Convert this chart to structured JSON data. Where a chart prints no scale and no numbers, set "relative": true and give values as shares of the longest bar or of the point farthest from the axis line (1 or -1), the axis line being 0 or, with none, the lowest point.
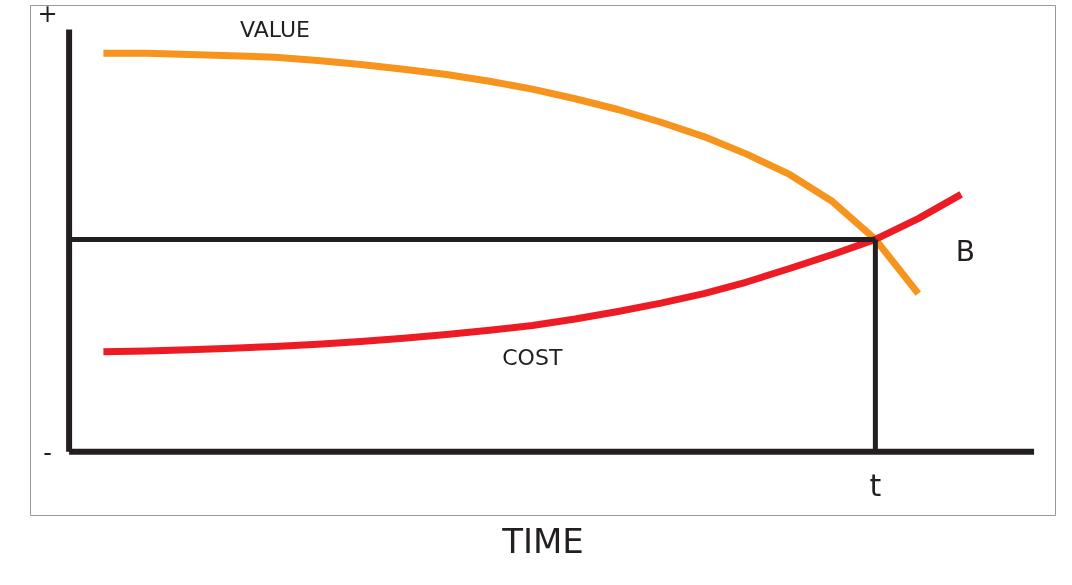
{
  "chart_data": {
    "type": "line",
    "relative": true,
    "xlabel": "TIME",
    "categories": [
      null,
      null,
      null,
      null,
      null,
      null,
      null,
      null,
      null,
      null,
      null,
      null,
      null,
      null,
      null,
      null,
      null,
      null,
      null,
      null,
      null
    ],
    "series": [
      {
        "name": "VALUE",
        "color": "#f7941d",
        "values": [
          1.0,
          1.0,
          0.997,
          0.994,
          0.99,
          0.982,
          0.972,
          0.96,
          0.947,
          0.93,
          0.91,
          0.886,
          0.859,
          0.827,
          0.791,
          0.747,
          0.696,
          0.628,
          0.533,
          0.397,
          null
        ]
      },
      {
        "name": "COST",
        "color": "#ed1c24",
        "values": [
          0.251,
          0.253,
          0.256,
          0.26,
          0.264,
          0.27,
          0.277,
          0.285,
          0.294,
          0.305,
          0.317,
          0.333,
          0.352,
          0.373,
          0.397,
          0.426,
          0.46,
          0.495,
          0.533,
          0.585,
          0.646
        ]
      }
    ],
    "ref_lines": [
      {
        "axis": "y",
        "value": 0.533,
        "color": "#231f20"
      }
    ],
    "annotations": [
      "+",
      "-",
      "B",
      "t"
    ],
    "grid": false
  }
}
